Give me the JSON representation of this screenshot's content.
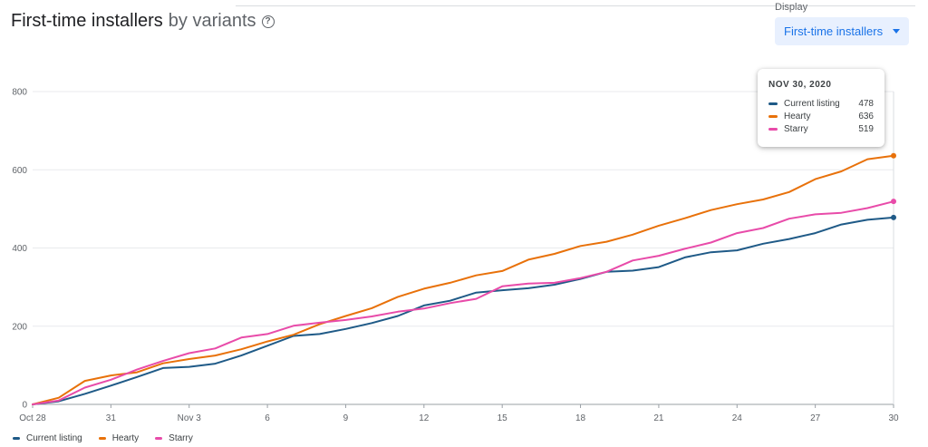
{
  "header": {
    "title": "First-time installers",
    "subtitle": "by variants",
    "help_icon": "help-circle-icon"
  },
  "display": {
    "label": "Display",
    "selected": "First-time installers",
    "icon": "caret-down-icon"
  },
  "tooltip": {
    "date": "NOV 30, 2020",
    "rows": [
      {
        "name": "Current listing",
        "value": "478"
      },
      {
        "name": "Hearty",
        "value": "636"
      },
      {
        "name": "Starry",
        "value": "519"
      }
    ]
  },
  "legend": [
    {
      "name": "Current listing"
    },
    {
      "name": "Hearty"
    },
    {
      "name": "Starry"
    }
  ],
  "colors": {
    "current": "#1f5a87",
    "hearty": "#e8710a",
    "starry": "#e84ba9",
    "grid": "#e8eaed",
    "axis": "#9aa0a6"
  },
  "chart_data": {
    "type": "line",
    "title": "First-time installers by variants",
    "x": [
      "Oct 28",
      "Oct 29",
      "Oct 30",
      "Oct 31",
      "Nov 1",
      "Nov 2",
      "Nov 3",
      "Nov 4",
      "Nov 5",
      "Nov 6",
      "Nov 7",
      "Nov 8",
      "Nov 9",
      "Nov 10",
      "Nov 11",
      "Nov 12",
      "Nov 13",
      "Nov 14",
      "Nov 15",
      "Nov 16",
      "Nov 17",
      "Nov 18",
      "Nov 19",
      "Nov 20",
      "Nov 21",
      "Nov 22",
      "Nov 23",
      "Nov 24",
      "Nov 25",
      "Nov 26",
      "Nov 27",
      "Nov 28",
      "Nov 29",
      "Nov 30"
    ],
    "x_tick_labels": [
      "Oct 28",
      "31",
      "Nov 3",
      "6",
      "9",
      "12",
      "15",
      "18",
      "21",
      "24",
      "27",
      "30"
    ],
    "x_tick_indices": [
      0,
      3,
      6,
      9,
      12,
      15,
      18,
      21,
      24,
      27,
      30,
      33
    ],
    "y_ticks": [
      0,
      200,
      400,
      600,
      800
    ],
    "ylim": [
      0,
      800
    ],
    "grid": true,
    "legend_position": "bottom-left",
    "series": [
      {
        "name": "Current listing",
        "color": "#1f5a87",
        "values": [
          0,
          8,
          27,
          48,
          70,
          93,
          96,
          104,
          125,
          150,
          175,
          180,
          193,
          208,
          226,
          253,
          265,
          286,
          292,
          297,
          306,
          321,
          339,
          342,
          351,
          376,
          389,
          394,
          411,
          423,
          438,
          460,
          472,
          478
        ]
      },
      {
        "name": "Hearty",
        "color": "#e8710a",
        "values": [
          0,
          17,
          60,
          74,
          82,
          105,
          116,
          125,
          141,
          161,
          178,
          205,
          226,
          246,
          275,
          296,
          311,
          330,
          341,
          370,
          385,
          405,
          416,
          434,
          457,
          476,
          497,
          512,
          524,
          543,
          576,
          596,
          627,
          636
        ]
      },
      {
        "name": "Starry",
        "color": "#e84ba9",
        "values": [
          0,
          10,
          43,
          63,
          89,
          111,
          131,
          143,
          171,
          180,
          201,
          209,
          216,
          225,
          237,
          245,
          259,
          270,
          302,
          309,
          311,
          323,
          339,
          368,
          380,
          398,
          414,
          438,
          451,
          475,
          486,
          490,
          502,
          519
        ]
      }
    ]
  }
}
